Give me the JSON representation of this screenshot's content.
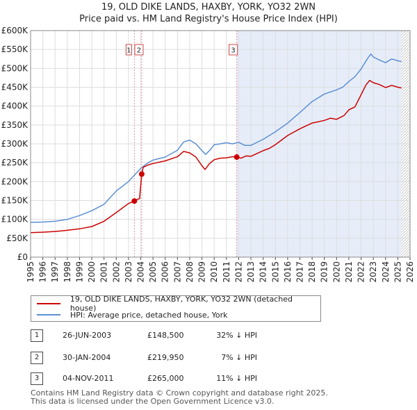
{
  "title_line1": "19, OLD DIKE LANDS, HAXBY, YORK, YO32 2WN",
  "title_line2": "Price paid vs. HM Land Registry's House Price Index (HPI)",
  "colors": {
    "property": "#cc0000",
    "hpi": "#5b8fd4",
    "shade": "#e6edf9",
    "vline": "#e090a0"
  },
  "chart_data": {
    "type": "line",
    "ylim": [
      0,
      600000
    ],
    "xlim": [
      1995,
      2026
    ],
    "y_ticks": [
      "£0",
      "£50K",
      "£100K",
      "£150K",
      "£200K",
      "£250K",
      "£300K",
      "£350K",
      "£400K",
      "£450K",
      "£500K",
      "£550K",
      "£600K"
    ],
    "y_tick_values": [
      0,
      50000,
      100000,
      150000,
      200000,
      250000,
      300000,
      350000,
      400000,
      450000,
      500000,
      550000,
      600000
    ],
    "x_ticks": [
      "1995",
      "1996",
      "1997",
      "1998",
      "1999",
      "2000",
      "2001",
      "2002",
      "2003",
      "2004",
      "2005",
      "2006",
      "2007",
      "2008",
      "2009",
      "2010",
      "2011",
      "2012",
      "2013",
      "2014",
      "2015",
      "2016",
      "2017",
      "2018",
      "2019",
      "2020",
      "2021",
      "2022",
      "2023",
      "2024",
      "2025",
      "2026"
    ],
    "series": [
      {
        "name": "19, OLD DIKE LANDS, HAXBY, YORK, YO32 2WN (detached house)",
        "x": [
          1995.0,
          1996.0,
          1997.0,
          1998.0,
          1999.0,
          2000.0,
          2001.0,
          2002.0,
          2003.0,
          2003.48,
          2003.49,
          2003.9,
          2004.08,
          2004.2,
          2004.6,
          2005.0,
          2006.0,
          2007.0,
          2007.5,
          2008.0,
          2008.5,
          2009.0,
          2009.25,
          2009.6,
          2010.0,
          2010.5,
          2011.0,
          2011.5,
          2011.84,
          2012.2,
          2012.6,
          2013.0,
          2014.0,
          2014.5,
          2015.0,
          2016.0,
          2017.0,
          2018.0,
          2019.0,
          2019.5,
          2020.0,
          2020.6,
          2021.0,
          2021.5,
          2022.0,
          2022.4,
          2022.7,
          2023.0,
          2023.5,
          2024.0,
          2024.5,
          2025.0,
          2025.3
        ],
        "values": [
          65000,
          66000,
          68000,
          71000,
          75000,
          81000,
          95000,
          118000,
          142000,
          148500,
          150000,
          155000,
          219950,
          238000,
          244000,
          248000,
          255000,
          266000,
          280000,
          276000,
          265000,
          242000,
          232000,
          247000,
          258000,
          262000,
          263000,
          266000,
          265000,
          262000,
          268000,
          267000,
          282000,
          288000,
          298000,
          322000,
          340000,
          355000,
          362000,
          368000,
          365000,
          375000,
          390000,
          398000,
          430000,
          456000,
          468000,
          462000,
          457000,
          449000,
          455000,
          450000,
          448000
        ]
      },
      {
        "name": "HPI: Average price, detached house, York",
        "x": [
          1995.0,
          1996.0,
          1997.0,
          1998.0,
          1999.0,
          2000.0,
          2001.0,
          2002.0,
          2003.0,
          2003.5,
          2004.0,
          2004.5,
          2005.0,
          2006.0,
          2007.0,
          2007.5,
          2008.0,
          2008.5,
          2009.0,
          2009.3,
          2009.7,
          2010.0,
          2010.5,
          2011.0,
          2011.5,
          2012.0,
          2012.5,
          2013.0,
          2014.0,
          2015.0,
          2016.0,
          2017.0,
          2018.0,
          2019.0,
          2020.0,
          2020.5,
          2021.0,
          2021.5,
          2022.0,
          2022.5,
          2022.8,
          2023.0,
          2023.5,
          2024.0,
          2024.5,
          2025.0,
          2025.3
        ],
        "values": [
          92000,
          93000,
          95000,
          100000,
          110000,
          123000,
          140000,
          175000,
          200000,
          218000,
          235000,
          248000,
          257000,
          265000,
          283000,
          305000,
          310000,
          300000,
          282000,
          272000,
          285000,
          298000,
          300000,
          303000,
          300000,
          304000,
          296000,
          296000,
          312000,
          332000,
          355000,
          383000,
          412000,
          432000,
          443000,
          450000,
          465000,
          478000,
          498000,
          525000,
          538000,
          530000,
          522000,
          515000,
          525000,
          520000,
          518000
        ]
      }
    ],
    "transactions": [
      {
        "num": "1",
        "date": "26-JUN-2003",
        "price": "£148,500",
        "hpi": "32% ↓ HPI",
        "x": 2003.48,
        "y": 148500
      },
      {
        "num": "2",
        "date": "30-JAN-2004",
        "price": "£219,950",
        "hpi": "7% ↓ HPI",
        "x": 2004.08,
        "y": 219950
      },
      {
        "num": "3",
        "date": "04-NOV-2011",
        "price": "£265,000",
        "hpi": "11% ↓ HPI",
        "x": 2011.84,
        "y": 265000
      }
    ],
    "hatch_from": 2025.3
  },
  "footer_line1": "Contains HM Land Registry data © Crown copyright and database right 2025.",
  "footer_line2": "This data is licensed under the Open Government Licence v3.0."
}
